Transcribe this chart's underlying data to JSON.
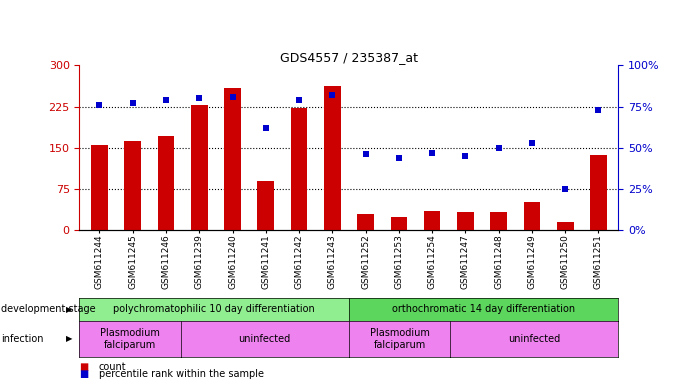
{
  "title": "GDS4557 / 235387_at",
  "samples": [
    "GSM611244",
    "GSM611245",
    "GSM611246",
    "GSM611239",
    "GSM611240",
    "GSM611241",
    "GSM611242",
    "GSM611243",
    "GSM611252",
    "GSM611253",
    "GSM611254",
    "GSM611247",
    "GSM611248",
    "GSM611249",
    "GSM611250",
    "GSM611251"
  ],
  "counts": [
    155,
    163,
    172,
    228,
    258,
    90,
    223,
    262,
    30,
    25,
    35,
    33,
    33,
    52,
    15,
    137
  ],
  "percentiles": [
    76,
    77,
    79,
    80,
    81,
    62,
    79,
    82,
    46,
    44,
    47,
    45,
    50,
    53,
    25,
    73
  ],
  "bar_color": "#cc0000",
  "dot_color": "#0000cc",
  "left_axis_color": "#cc0000",
  "right_axis_color": "#0000cc",
  "ylim_left": [
    0,
    300
  ],
  "ylim_right": [
    0,
    100
  ],
  "left_ticks": [
    0,
    75,
    150,
    225,
    300
  ],
  "right_ticks": [
    0,
    25,
    50,
    75,
    100
  ],
  "right_tick_labels": [
    "0%",
    "25%",
    "50%",
    "75%",
    "100%"
  ],
  "gridlines": [
    75,
    150,
    225
  ],
  "dev_stage_groups": [
    {
      "label": "polychromatophilic 10 day differentiation",
      "start": 0,
      "end": 8,
      "color": "#90ee90"
    },
    {
      "label": "orthochromatic 14 day differentiation",
      "start": 8,
      "end": 16,
      "color": "#5cd65c"
    }
  ],
  "infection_groups": [
    {
      "label": "Plasmodium\nfalciparum",
      "start": 0,
      "end": 3,
      "color": "#ee82ee"
    },
    {
      "label": "uninfected",
      "start": 3,
      "end": 8,
      "color": "#ee82ee"
    },
    {
      "label": "Plasmodium\nfalciparum",
      "start": 8,
      "end": 11,
      "color": "#ee82ee"
    },
    {
      "label": "uninfected",
      "start": 11,
      "end": 16,
      "color": "#ee82ee"
    }
  ],
  "bg_color": "#ffffff",
  "bar_width": 0.5,
  "label_left": "development stage",
  "label_infection": "infection",
  "legend_count": "count",
  "legend_pct": "percentile rank within the sample"
}
